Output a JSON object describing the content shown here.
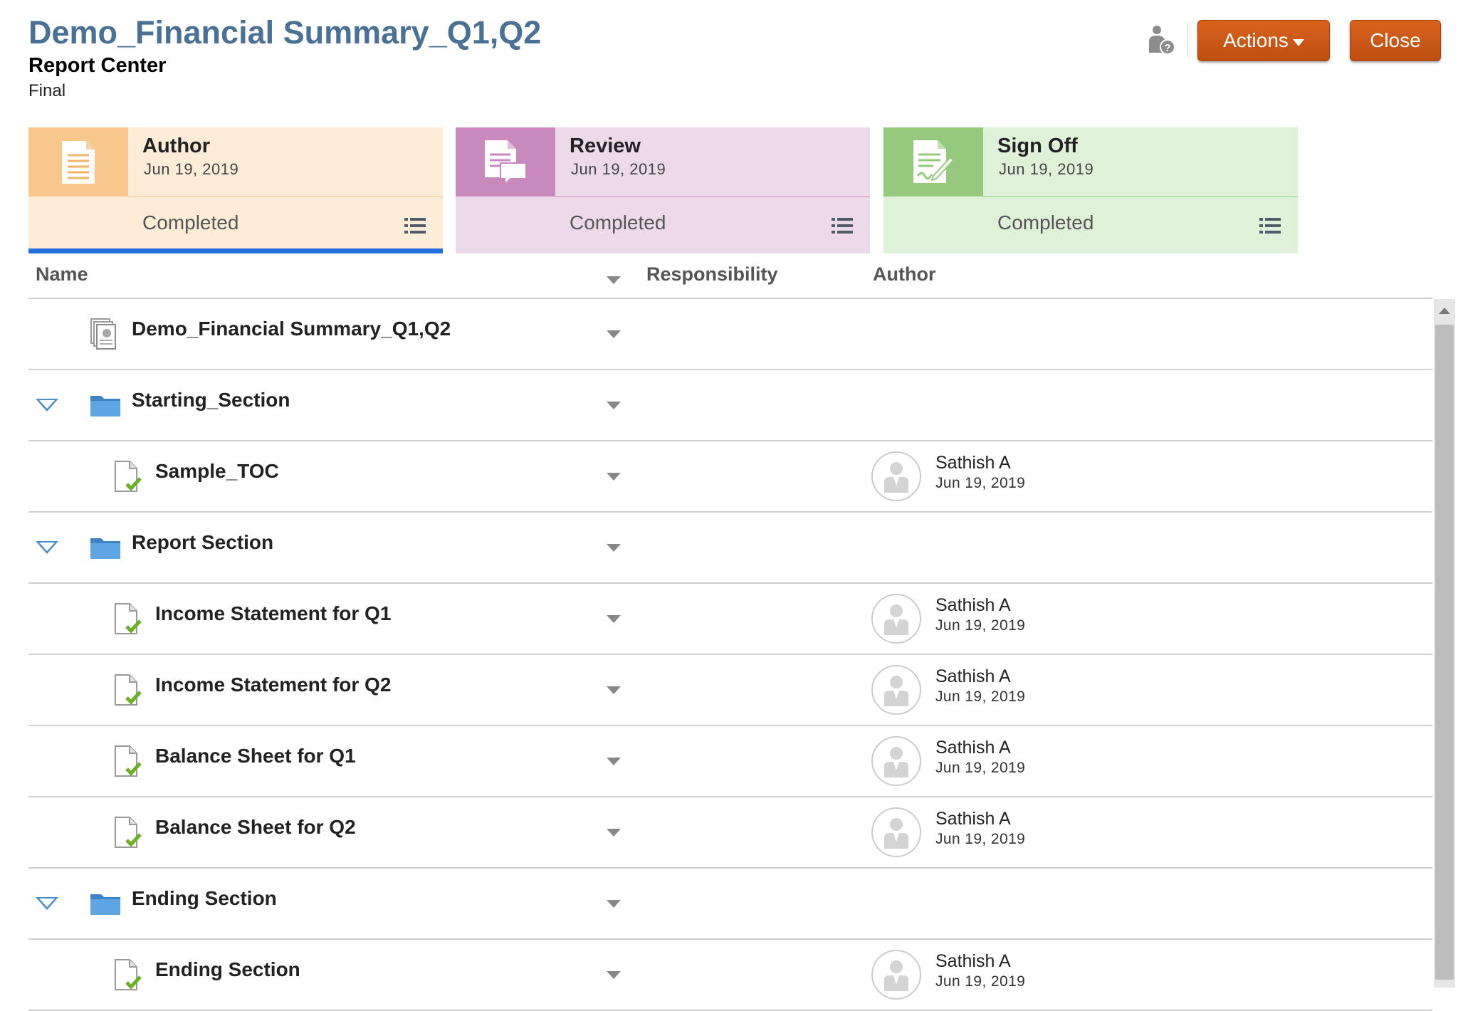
{
  "header": {
    "title": "Demo_Financial Summary_Q1,Q2",
    "subtitle": "Report Center",
    "status": "Final",
    "actions_label": "Actions",
    "close_label": "Close"
  },
  "stages": [
    {
      "name": "Author",
      "date": "Jun 19, 2019",
      "status": "Completed",
      "icon": "document-icon",
      "accent": "#f8c78b",
      "bg": "#fdecd7",
      "active": true
    },
    {
      "name": "Review",
      "date": "Jun 19, 2019",
      "status": "Completed",
      "icon": "document-comment-icon",
      "accent": "#c889bd",
      "bg": "#ecd9ea",
      "active": false
    },
    {
      "name": "Sign Off",
      "date": "Jun 19, 2019",
      "status": "Completed",
      "icon": "document-sign-icon",
      "accent": "#95c97d",
      "bg": "#e0f1d9",
      "active": false
    }
  ],
  "table": {
    "columns": {
      "name": "Name",
      "responsibility": "Responsibility",
      "author": "Author"
    },
    "rows": [
      {
        "name": "Demo_Financial Summary_Q1,Q2",
        "type": "package",
        "level": 0,
        "expandable": false,
        "author": "",
        "date": ""
      },
      {
        "name": "Starting_Section",
        "type": "folder",
        "level": 0,
        "expandable": true,
        "author": "",
        "date": ""
      },
      {
        "name": "Sample_TOC",
        "type": "doclet",
        "level": 1,
        "expandable": false,
        "author": "Sathish A",
        "date": "Jun 19, 2019"
      },
      {
        "name": "Report Section",
        "type": "folder",
        "level": 0,
        "expandable": true,
        "author": "",
        "date": ""
      },
      {
        "name": "Income Statement for Q1",
        "type": "doclet",
        "level": 1,
        "expandable": false,
        "author": "Sathish A",
        "date": "Jun 19, 2019"
      },
      {
        "name": "Income Statement for Q2",
        "type": "doclet",
        "level": 1,
        "expandable": false,
        "author": "Sathish A",
        "date": "Jun 19, 2019"
      },
      {
        "name": "Balance Sheet for Q1",
        "type": "doclet",
        "level": 1,
        "expandable": false,
        "author": "Sathish A",
        "date": "Jun 19, 2019"
      },
      {
        "name": "Balance Sheet for Q2",
        "type": "doclet",
        "level": 1,
        "expandable": false,
        "author": "Sathish A",
        "date": "Jun 19, 2019"
      },
      {
        "name": "Ending Section",
        "type": "folder",
        "level": 0,
        "expandable": true,
        "author": "",
        "date": ""
      },
      {
        "name": "Ending Section",
        "type": "doclet",
        "level": 1,
        "expandable": false,
        "author": "Sathish A",
        "date": "Jun 19, 2019"
      }
    ]
  },
  "colors": {
    "title": "#4a7096",
    "button": "#c8541a",
    "active_tab": "#2370d8",
    "folder": "#5b9bd5",
    "check": "#6ab023"
  }
}
